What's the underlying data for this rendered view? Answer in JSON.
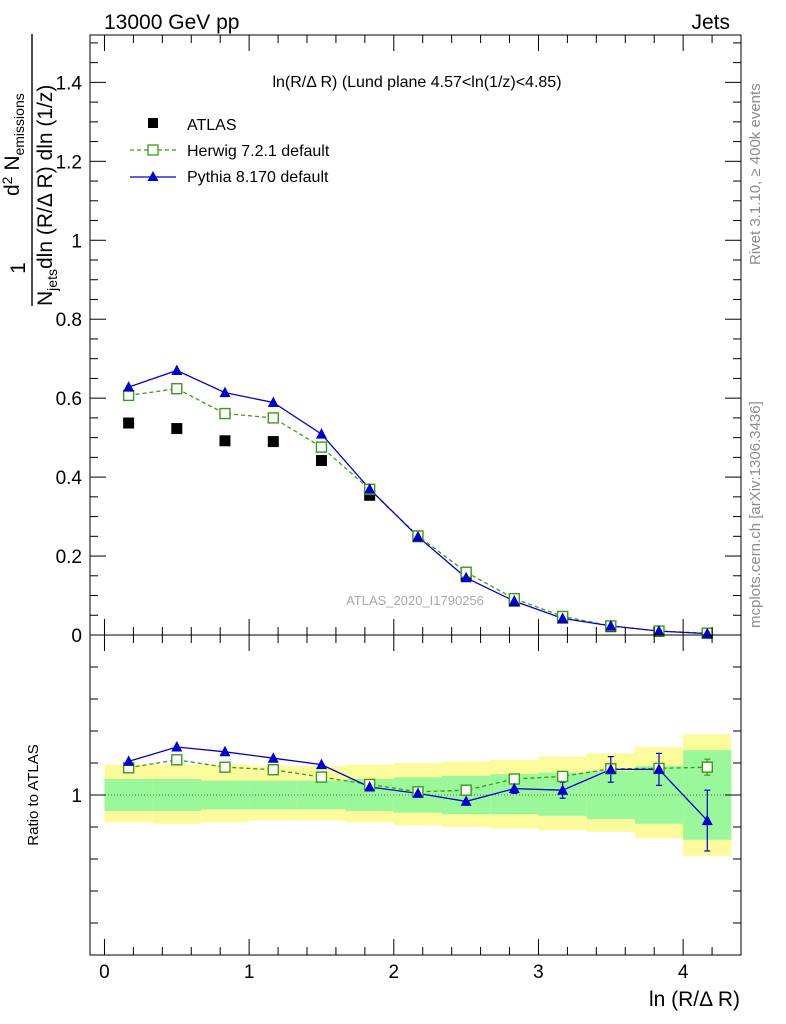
{
  "header": {
    "left": "13000 GeV pp",
    "right": "Jets"
  },
  "side_labels": {
    "rivet": "Rivet 3.1.10, ≥ 400k events",
    "mcplots": "mcplots.cern.ch [arXiv:1306.3436]"
  },
  "colors": {
    "atlas": "#000000",
    "herwig": "#3a9a1a",
    "pythia": "#0000d0",
    "band_inner": "#9af79a",
    "band_outer": "#fbfb9c"
  },
  "chart_data": [
    {
      "type": "scatter",
      "title": "ln(R/Δ R) (Lund plane 4.57<ln(1/z)<4.85)",
      "watermark": "ATLAS_2020_I1790256",
      "ylabel": {
        "frac_one": "1",
        "frac_njets": "N",
        "frac_njets_sub": "jets",
        "frac_den_rest": "dln (R/Δ R) dln (1/z)",
        "main_prefix": "d",
        "main_sup": "2",
        "main_mid": " N",
        "main_sub": "emissions"
      },
      "xlim": [
        -0.1,
        4.4
      ],
      "ylim": [
        0,
        1.52
      ],
      "yticks": [
        "0",
        "0.2",
        "0.4",
        "0.6",
        "0.8",
        "1",
        "1.2",
        "1.4"
      ],
      "ytick_values": [
        0,
        0.2,
        0.4,
        0.6,
        0.8,
        1.0,
        1.2,
        1.4
      ],
      "x": [
        0.167,
        0.5,
        0.833,
        1.167,
        1.5,
        1.833,
        2.167,
        2.5,
        2.833,
        3.167,
        3.5,
        3.833,
        4.167
      ],
      "series": [
        {
          "name": "ATLAS",
          "marker": "filled-square",
          "values": [
            0.537,
            0.523,
            0.492,
            0.49,
            0.442,
            0.354,
            0.249,
            0.15,
            0.086,
            0.043,
            0.021,
            0.009,
            0.004
          ]
        },
        {
          "name": "Herwig 7.2.1 default",
          "marker": "open-square",
          "line": "dashed",
          "values": [
            0.607,
            0.624,
            0.561,
            0.55,
            0.476,
            0.369,
            0.251,
            0.159,
            0.092,
            0.047,
            0.023,
            0.01,
            0.0045
          ]
        },
        {
          "name": "Pythia 8.170 default",
          "marker": "filled-triangle",
          "line": "solid",
          "values": [
            0.628,
            0.67,
            0.614,
            0.589,
            0.509,
            0.37,
            0.249,
            0.145,
            0.086,
            0.042,
            0.023,
            0.01,
            0.0035
          ]
        }
      ]
    },
    {
      "type": "scatter",
      "xlabel": "ln (R/Δ R)",
      "ylabel": "Ratio to ATLAS",
      "xlim": [
        -0.1,
        4.4
      ],
      "ylim": [
        0.5,
        1.5
      ],
      "xticks": [
        "0",
        "1",
        "2",
        "3",
        "4"
      ],
      "xtick_values": [
        0,
        1,
        2,
        3,
        4
      ],
      "yticks": [
        "1"
      ],
      "ytick_values": [
        1
      ],
      "bin_edges": [
        0,
        0.333,
        0.667,
        1.0,
        1.333,
        1.667,
        2.0,
        2.333,
        2.667,
        3.0,
        3.333,
        3.667,
        4.0,
        4.333
      ],
      "band_inner": [
        [
          0.95,
          1.05
        ],
        [
          0.95,
          1.05
        ],
        [
          0.955,
          1.045
        ],
        [
          0.955,
          1.045
        ],
        [
          0.955,
          1.045
        ],
        [
          0.95,
          1.05
        ],
        [
          0.945,
          1.055
        ],
        [
          0.94,
          1.06
        ],
        [
          0.94,
          1.065
        ],
        [
          0.935,
          1.07
        ],
        [
          0.925,
          1.075
        ],
        [
          0.91,
          1.09
        ],
        [
          0.86,
          1.14
        ]
      ],
      "band_outer": [
        [
          0.915,
          1.095
        ],
        [
          0.91,
          1.095
        ],
        [
          0.915,
          1.095
        ],
        [
          0.92,
          1.09
        ],
        [
          0.92,
          1.09
        ],
        [
          0.915,
          1.095
        ],
        [
          0.905,
          1.1
        ],
        [
          0.9,
          1.105
        ],
        [
          0.895,
          1.11
        ],
        [
          0.89,
          1.12
        ],
        [
          0.885,
          1.13
        ],
        [
          0.865,
          1.15
        ],
        [
          0.81,
          1.19
        ]
      ],
      "x": [
        0.167,
        0.5,
        0.833,
        1.167,
        1.5,
        1.833,
        2.167,
        2.5,
        2.833,
        3.167,
        3.5,
        3.833,
        4.167
      ],
      "series": [
        {
          "name": "Herwig 7.2.1 default",
          "marker": "open-square",
          "line": "dashed",
          "values": [
            1.085,
            1.11,
            1.087,
            1.079,
            1.056,
            1.033,
            1.01,
            1.015,
            1.05,
            1.058,
            1.082,
            1.083,
            1.087
          ],
          "errors": [
            0,
            0,
            0,
            0,
            0,
            0,
            0,
            0,
            0,
            0,
            0,
            0,
            0.025
          ]
        },
        {
          "name": "Pythia 8.170 default",
          "marker": "filled-triangle",
          "line": "solid",
          "values": [
            1.105,
            1.15,
            1.135,
            1.115,
            1.095,
            1.025,
            1.005,
            0.98,
            1.02,
            1.015,
            1.08,
            1.08,
            0.92
          ],
          "errors": [
            0,
            0,
            0,
            0,
            0,
            0,
            0,
            0,
            0.015,
            0.025,
            0.04,
            0.05,
            0.095
          ]
        }
      ]
    }
  ]
}
